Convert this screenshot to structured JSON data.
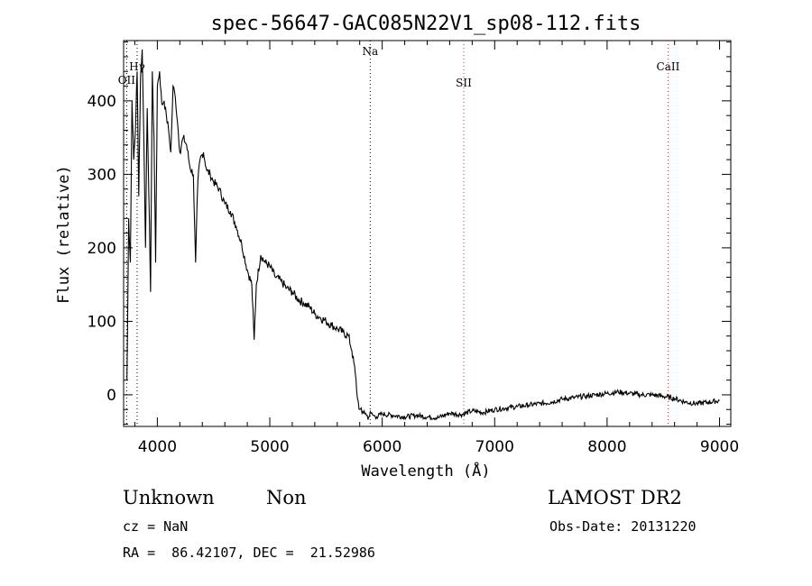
{
  "chart_data": {
    "type": "line",
    "title": "spec-56647-GAC085N22V1_sp08-112.fits",
    "xlabel": "Wavelength (Å)",
    "ylabel": "Flux (relative)",
    "xlim": [
      3700,
      9100
    ],
    "ylim": [
      -43,
      482
    ],
    "xticks": [
      4000,
      5000,
      6000,
      7000,
      8000,
      9000
    ],
    "yticks": [
      0,
      100,
      200,
      300,
      400
    ],
    "grid": false,
    "spectral_lines": [
      {
        "name": "OII",
        "wavelength": 3727,
        "color": "#000000"
      },
      {
        "name": "Hγ",
        "wavelength": 3820,
        "color": "#000000"
      },
      {
        "name": "Na",
        "wavelength": 5893,
        "color": "#000000"
      },
      {
        "name": "SII",
        "wavelength": 6725,
        "color": "#e03030"
      },
      {
        "name": "CaII",
        "wavelength": 8542,
        "color": "#e03030"
      }
    ],
    "series": [
      {
        "x": [
          3730,
          3745,
          3760,
          3775,
          3790,
          3805,
          3820,
          3835,
          3850,
          3865,
          3880,
          3895,
          3910,
          3925,
          3940,
          3955,
          3970,
          3985,
          4000,
          4020,
          4040,
          4060,
          4080,
          4100,
          4120,
          4140,
          4160,
          4180,
          4200,
          4230,
          4260,
          4290,
          4320,
          4340,
          4360,
          4380,
          4410,
          4440,
          4470,
          4500,
          4550,
          4600,
          4650,
          4700,
          4750,
          4800,
          4840,
          4861,
          4880,
          4920,
          4960,
          5000,
          5050,
          5100,
          5150,
          5200,
          5250,
          5300,
          5350,
          5400,
          5450,
          5500,
          5550,
          5600,
          5650,
          5700,
          5730,
          5760,
          5780,
          5800,
          5820,
          5840,
          5860,
          5880,
          5900,
          5920,
          5950,
          6000,
          6100,
          6200,
          6300,
          6400,
          6500,
          6600,
          6700,
          6800,
          6900,
          7000,
          7100,
          7200,
          7300,
          7400,
          7500,
          7600,
          7700,
          7800,
          7900,
          8000,
          8100,
          8200,
          8300,
          8400,
          8500,
          8600,
          8700,
          8800,
          8900,
          9000
        ],
        "values": [
          20,
          240,
          180,
          400,
          320,
          360,
          440,
          270,
          430,
          470,
          350,
          200,
          390,
          270,
          140,
          440,
          350,
          180,
          420,
          440,
          395,
          400,
          380,
          360,
          330,
          420,
          405,
          370,
          330,
          350,
          340,
          310,
          300,
          180,
          290,
          320,
          330,
          305,
          300,
          290,
          280,
          260,
          250,
          230,
          205,
          170,
          150,
          75,
          150,
          190,
          180,
          175,
          160,
          155,
          145,
          140,
          130,
          125,
          120,
          110,
          105,
          100,
          95,
          90,
          85,
          80,
          60,
          30,
          -5,
          -20,
          -25,
          -22,
          -28,
          -30,
          -25,
          -28,
          -30,
          -26,
          -28,
          -30,
          -28,
          -30,
          -31,
          -25,
          -27,
          -22,
          -24,
          -20,
          -18,
          -16,
          -14,
          -12,
          -10,
          -6,
          -4,
          -2,
          0,
          2,
          4,
          2,
          0,
          0,
          -2,
          -5,
          -10,
          -12,
          -10,
          -8
        ]
      }
    ]
  },
  "footer": {
    "class_label": "Unknown",
    "subclass_label": "Non",
    "survey": "LAMOST DR2",
    "cz": "cz = NaN",
    "obs_date": "Obs-Date: 20131220",
    "coords": "RA =  86.42107, DEC =  21.52986"
  }
}
